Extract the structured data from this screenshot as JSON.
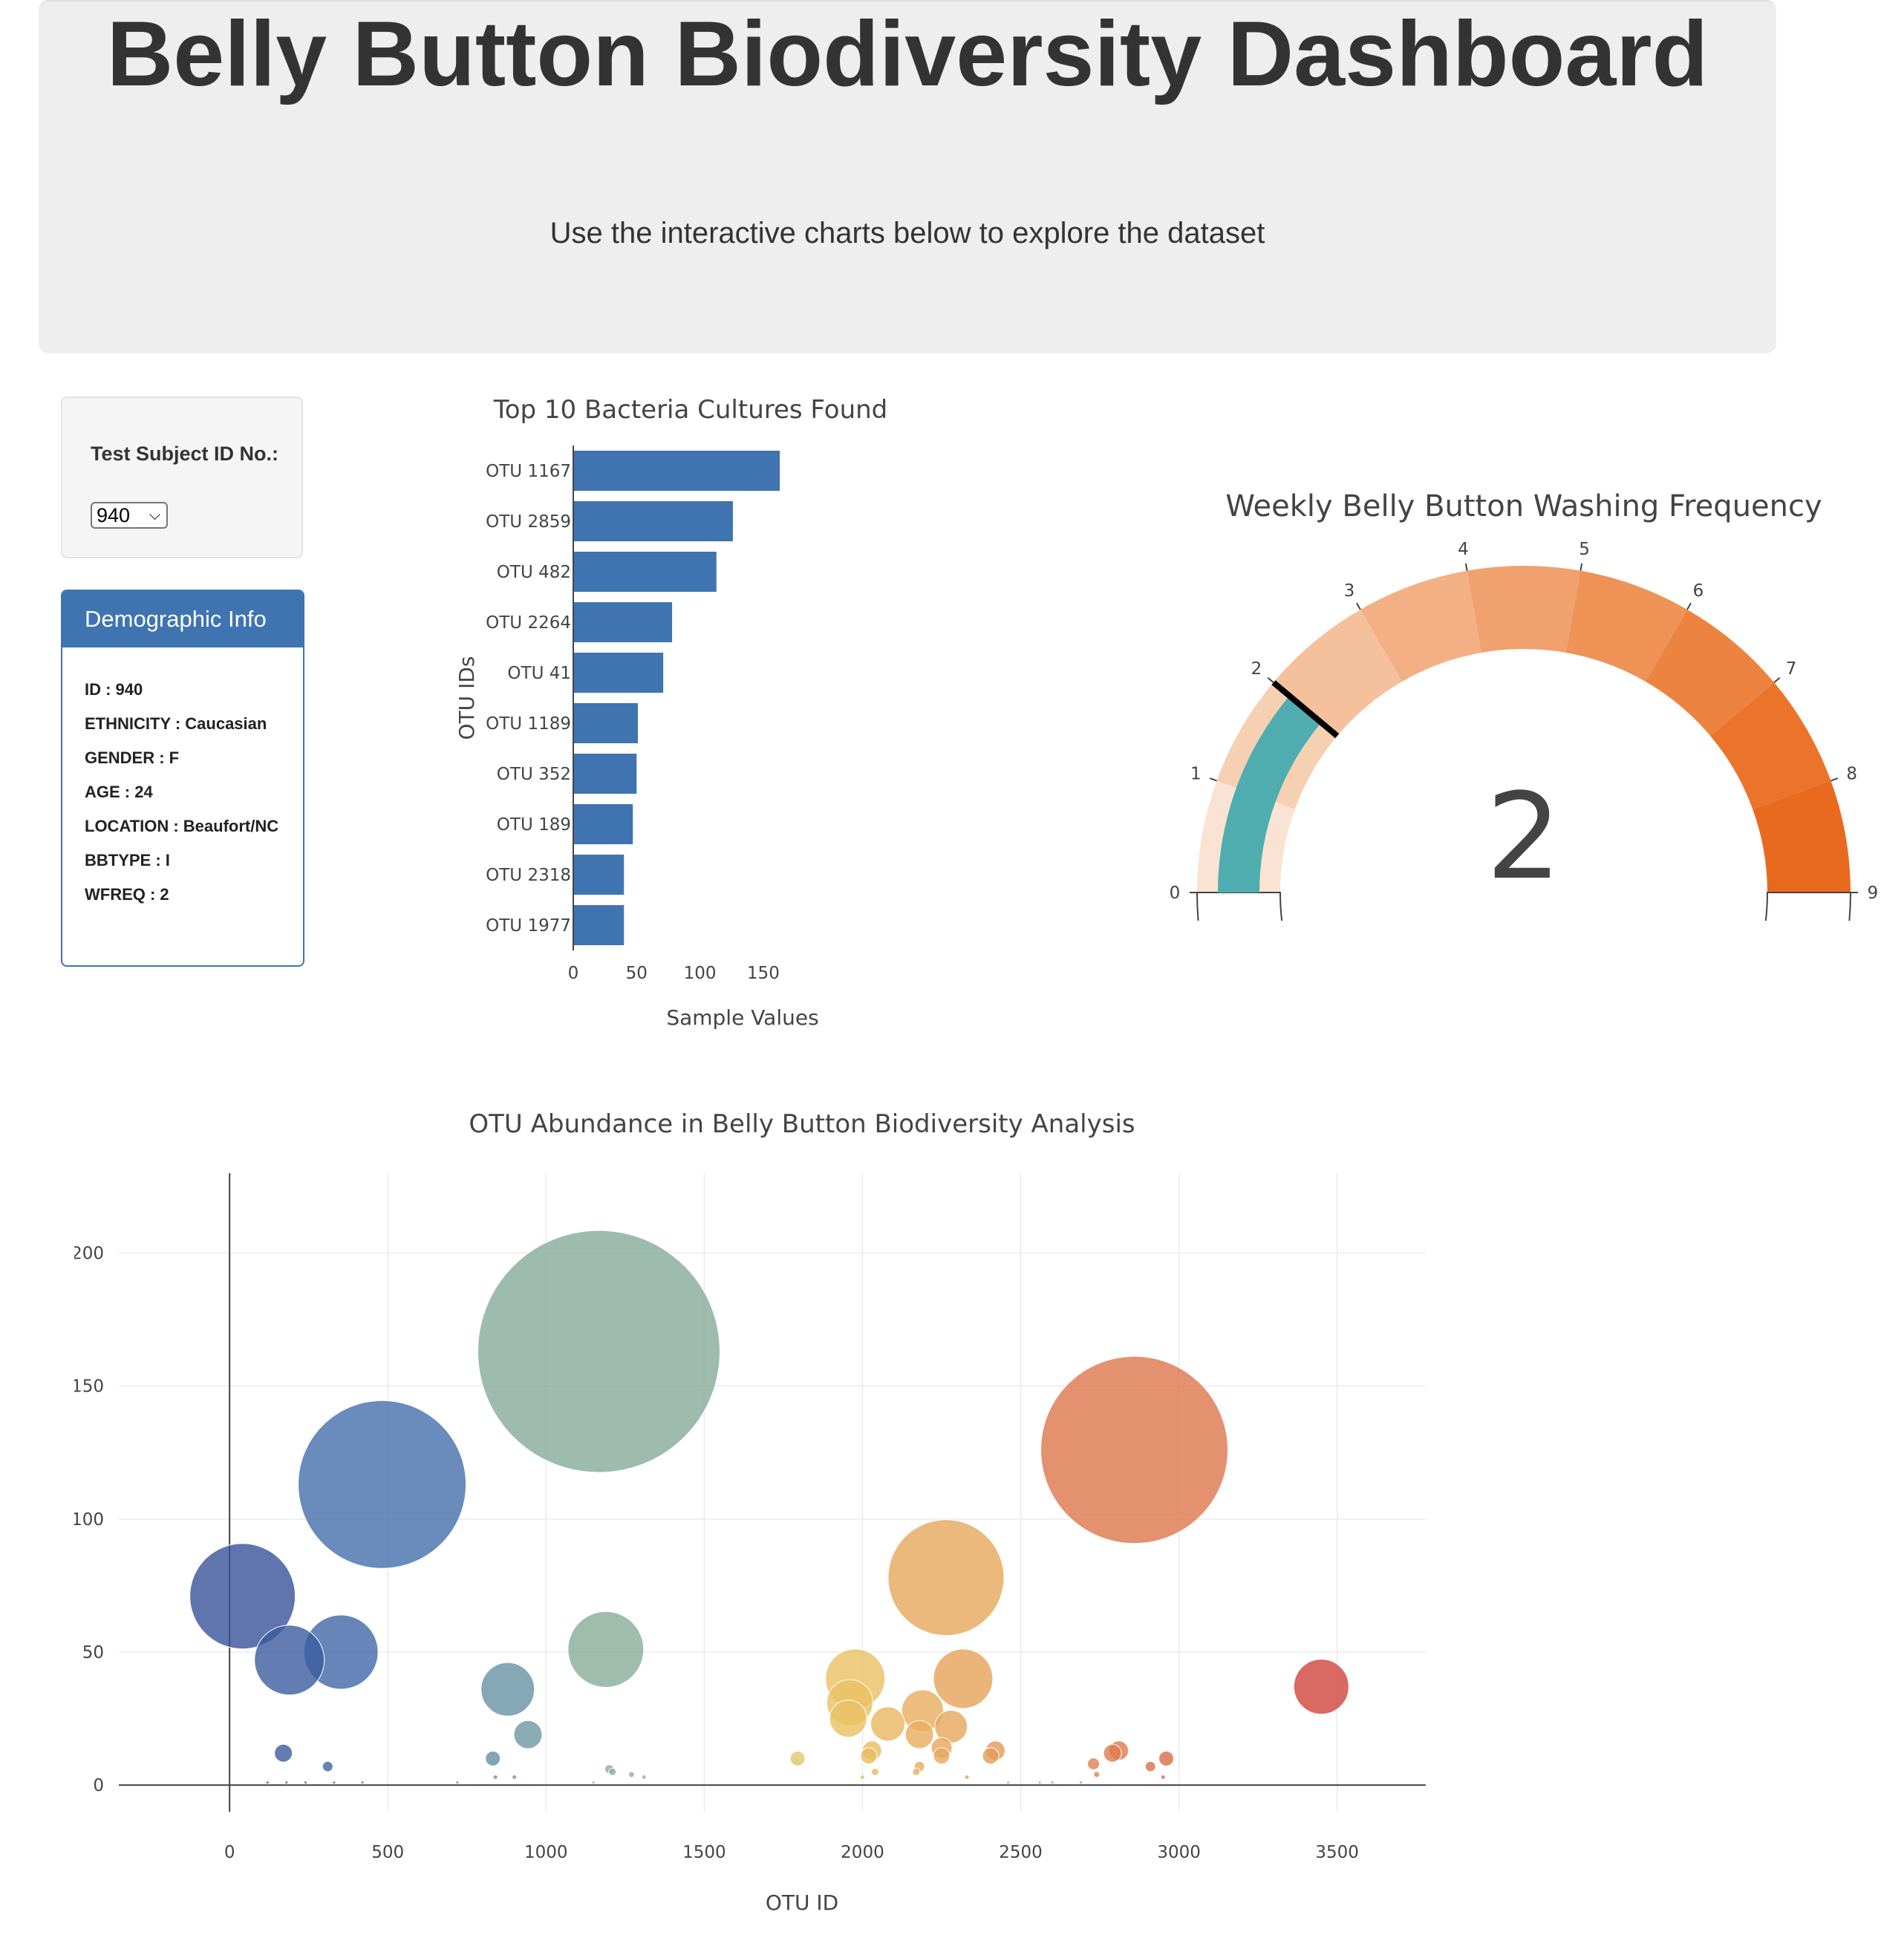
{
  "header": {
    "title": "Belly Button Biodiversity Dashboard",
    "subtitle": "Use the interactive charts below to explore the dataset"
  },
  "selector": {
    "label": "Test Subject ID No.:",
    "selected": "940"
  },
  "demographic": {
    "title": "Demographic Info",
    "rows": [
      "ID : 940",
      "ETHNICITY : Caucasian",
      "GENDER : F",
      "AGE : 24",
      "LOCATION : Beaufort/NC",
      "BBTYPE : I",
      "WFREQ : 2"
    ]
  },
  "colors": {
    "bar": "#3f74b0",
    "needle": "#000000",
    "gauge_value_bar": "#4fadb0"
  },
  "chart_data": [
    {
      "type": "bar",
      "orientation": "horizontal",
      "title": "Top 10 Bacteria Cultures Found",
      "xlabel": "Sample Values",
      "ylabel": "OTU IDs",
      "categories": [
        "OTU 1167",
        "OTU 2859",
        "OTU 482",
        "OTU 2264",
        "OTU 41",
        "OTU 1189",
        "OTU 352",
        "OTU 189",
        "OTU 2318",
        "OTU 1977"
      ],
      "values": [
        163,
        126,
        113,
        78,
        71,
        51,
        50,
        47,
        40,
        40
      ],
      "xlim": [
        0,
        170
      ],
      "xticks": [
        0,
        50,
        100,
        150
      ]
    },
    {
      "type": "gauge",
      "title": "Weekly Belly Button Washing Frequency",
      "value": 2,
      "range": [
        0,
        9
      ],
      "ticks": [
        0,
        1,
        2,
        3,
        4,
        5,
        6,
        7,
        8,
        9
      ],
      "step_colors": [
        "#fae3d2",
        "#f6d0b3",
        "#f4c19c",
        "#f2b084",
        "#f0a16d",
        "#ee9256",
        "#ec8340",
        "#eb742b",
        "#e96a1e"
      ]
    },
    {
      "type": "scatter",
      "title": "OTU Abundance in Belly Button Biodiversity Analysis",
      "xlabel": "OTU ID",
      "ylabel": "Sample Values",
      "xlim": [
        -350,
        3780
      ],
      "ylim": [
        -10,
        230
      ],
      "xticks": [
        0,
        500,
        1000,
        1500,
        2000,
        2500,
        3000,
        3500
      ],
      "yticks": [
        0,
        50,
        100,
        150,
        200
      ],
      "colorscale": "Earth",
      "points": [
        {
          "x": 41,
          "y": 71
        },
        {
          "x": 189,
          "y": 47
        },
        {
          "x": 352,
          "y": 50
        },
        {
          "x": 482,
          "y": 113
        },
        {
          "x": 1167,
          "y": 163
        },
        {
          "x": 1189,
          "y": 51
        },
        {
          "x": 2264,
          "y": 78
        },
        {
          "x": 2859,
          "y": 126
        },
        {
          "x": 3450,
          "y": 37
        },
        {
          "x": 2318,
          "y": 40
        },
        {
          "x": 1977,
          "y": 40
        },
        {
          "x": 1960,
          "y": 31
        },
        {
          "x": 1955,
          "y": 25
        },
        {
          "x": 2080,
          "y": 23
        },
        {
          "x": 2190,
          "y": 28
        },
        {
          "x": 2180,
          "y": 19
        },
        {
          "x": 2280,
          "y": 22
        },
        {
          "x": 879,
          "y": 36
        },
        {
          "x": 943,
          "y": 19
        },
        {
          "x": 170,
          "y": 12
        },
        {
          "x": 310,
          "y": 7
        },
        {
          "x": 832,
          "y": 10
        },
        {
          "x": 1795,
          "y": 10
        },
        {
          "x": 2030,
          "y": 13
        },
        {
          "x": 2020,
          "y": 11
        },
        {
          "x": 2250,
          "y": 14
        },
        {
          "x": 2250,
          "y": 11
        },
        {
          "x": 2420,
          "y": 13
        },
        {
          "x": 2405,
          "y": 11
        },
        {
          "x": 2810,
          "y": 13
        },
        {
          "x": 2790,
          "y": 12
        },
        {
          "x": 2960,
          "y": 10
        },
        {
          "x": 2730,
          "y": 8
        },
        {
          "x": 2910,
          "y": 7
        },
        {
          "x": 2180,
          "y": 7
        },
        {
          "x": 2170,
          "y": 5
        },
        {
          "x": 2040,
          "y": 5
        },
        {
          "x": 1200,
          "y": 6
        },
        {
          "x": 1210,
          "y": 5
        },
        {
          "x": 1270,
          "y": 4
        },
        {
          "x": 1310,
          "y": 3
        },
        {
          "x": 2740,
          "y": 4
        },
        {
          "x": 2950,
          "y": 3
        },
        {
          "x": 2330,
          "y": 3
        },
        {
          "x": 2000,
          "y": 3
        },
        {
          "x": 840,
          "y": 3
        },
        {
          "x": 900,
          "y": 3
        },
        {
          "x": 120,
          "y": 1
        },
        {
          "x": 180,
          "y": 1
        },
        {
          "x": 240,
          "y": 1
        },
        {
          "x": 330,
          "y": 1
        },
        {
          "x": 420,
          "y": 1
        },
        {
          "x": 720,
          "y": 1
        },
        {
          "x": 1150,
          "y": 1
        },
        {
          "x": 2460,
          "y": 1
        },
        {
          "x": 2560,
          "y": 1
        },
        {
          "x": 2600,
          "y": 1
        },
        {
          "x": 2690,
          "y": 1
        }
      ]
    }
  ]
}
